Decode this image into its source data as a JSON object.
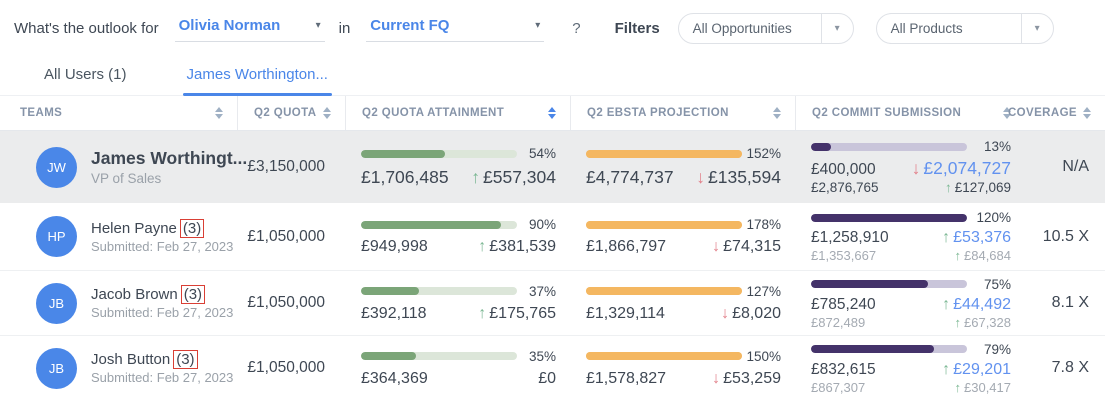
{
  "colors": {
    "accent_blue": "#4a86e8",
    "bar_green": "#7ba578",
    "bar_orange": "#f4b761",
    "bar_purple": "#44326a",
    "arrow_up_green": "#7cb894",
    "arrow_down_red": "#e2808a",
    "delta_blue": "#6292ef",
    "annotation_red": "#d93f35"
  },
  "topbar": {
    "question_prefix": "What's the outlook for",
    "user_select": {
      "value": "Olivia Norman",
      "caret": "▾"
    },
    "in_label": "in",
    "period_select": {
      "value": "Current FQ",
      "caret": "▾"
    },
    "question_suffix": "?",
    "filters_label": "Filters",
    "opportunities_filter": {
      "value": "All Opportunities",
      "caret": "▾"
    },
    "products_filter": {
      "value": "All Products",
      "caret": "▾"
    }
  },
  "tabs": [
    {
      "label": "All Users (1)"
    },
    {
      "label": "James Worthington..."
    }
  ],
  "table": {
    "columns": [
      "Teams",
      "Q2 Quota",
      "Q2 Quota Attainment",
      "Q2 Ebsta Projection",
      "Q2 Commit Submission",
      "Coverage"
    ],
    "sorted_column": "Q2 Quota Attainment",
    "rows": [
      {
        "initials": "JW",
        "name": "James Worthingt...",
        "subtitle": "VP of Sales",
        "quota": "£3,150,000",
        "attainment": {
          "pct": "54%",
          "fill": 54,
          "value": "£1,706,485",
          "arrow": "↑",
          "delta": "£557,304"
        },
        "projection": {
          "pct": "152%",
          "fill": 100,
          "value": "£4,774,737",
          "arrow": "↓",
          "delta": "£135,594"
        },
        "commit": {
          "pct": "13%",
          "fill": 13,
          "value": "£400,000",
          "arrow": "↓",
          "delta": "£2,074,727",
          "value2": "£2,876,765",
          "arrow2": "↑",
          "delta2": "£127,069"
        },
        "coverage": "N/A"
      },
      {
        "initials": "HP",
        "name": "Helen Payne",
        "count": "(3)",
        "subtitle": "Submitted: Feb 27, 2023",
        "quota": "£1,050,000",
        "attainment": {
          "pct": "90%",
          "fill": 90,
          "value": "£949,998",
          "arrow": "↑",
          "delta": "£381,539"
        },
        "projection": {
          "pct": "178%",
          "fill": 100,
          "value": "£1,866,797",
          "arrow": "↓",
          "delta": "£74,315"
        },
        "commit": {
          "pct": "120%",
          "fill": 100,
          "value": "£1,258,910",
          "arrow": "↑",
          "delta": "£53,376",
          "value2": "£1,353,667",
          "arrow2": "↑",
          "delta2": "£84,684"
        },
        "coverage": "10.5 X"
      },
      {
        "initials": "JB",
        "name": "Jacob Brown",
        "count": "(3)",
        "subtitle": "Submitted: Feb 27, 2023",
        "quota": "£1,050,000",
        "attainment": {
          "pct": "37%",
          "fill": 37,
          "value": "£392,118",
          "arrow": "↑",
          "delta": "£175,765"
        },
        "projection": {
          "pct": "127%",
          "fill": 100,
          "value": "£1,329,114",
          "arrow": "↓",
          "delta": "£8,020"
        },
        "commit": {
          "pct": "75%",
          "fill": 75,
          "value": "£785,240",
          "arrow": "↑",
          "delta": "£44,492",
          "value2": "£872,489",
          "arrow2": "↑",
          "delta2": "£67,328"
        },
        "coverage": "8.1 X"
      },
      {
        "initials": "JB",
        "name": "Josh Button",
        "count": "(3)",
        "subtitle": "Submitted: Feb 27, 2023",
        "quota": "£1,050,000",
        "attainment": {
          "pct": "35%",
          "fill": 35,
          "value": "£364,369",
          "arrow": "",
          "delta": "£0"
        },
        "projection": {
          "pct": "150%",
          "fill": 100,
          "value": "£1,578,827",
          "arrow": "↓",
          "delta": "£53,259"
        },
        "commit": {
          "pct": "79%",
          "fill": 79,
          "value": "£832,615",
          "arrow": "↑",
          "delta": "£29,201",
          "value2": "£867,307",
          "arrow2": "↑",
          "delta2": "£30,417"
        },
        "coverage": "7.8 X"
      }
    ]
  }
}
